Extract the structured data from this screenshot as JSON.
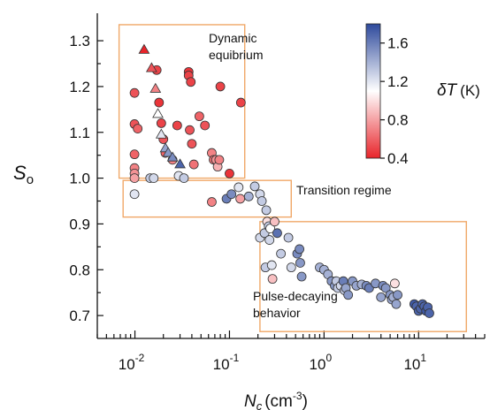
{
  "chart_data": {
    "type": "scatter",
    "title": "",
    "xlabel_main": "N",
    "xlabel_sub": "c",
    "xlabel_unit": "(cm",
    "xlabel_exp": "-3",
    "xlabel_close": ")",
    "ylabel_main": "S",
    "ylabel_sub": "o",
    "xscale": "log",
    "xlim": [
      0.004,
      50
    ],
    "ylim": [
      0.65,
      1.36
    ],
    "x_tick_labels": [
      {
        "value": 0.01,
        "base": "10",
        "exp": "-2"
      },
      {
        "value": 0.1,
        "base": "10",
        "exp": "-1"
      },
      {
        "value": 1,
        "base": "10",
        "exp": "0"
      },
      {
        "value": 10,
        "base": "10",
        "exp": "1"
      }
    ],
    "y_ticks": [
      0.7,
      0.8,
      0.9,
      1.0,
      1.1,
      1.2,
      1.3
    ],
    "y_tick_labels": [
      "0.7",
      "0.8",
      "0.9",
      "1.0",
      "1.1",
      "1.2",
      "1.3"
    ],
    "colorbar": {
      "label_main": "δT",
      "label_unit": "(K)",
      "range": [
        0.4,
        1.8
      ],
      "ticks": [
        0.4,
        0.8,
        1.2,
        1.6
      ],
      "tick_labels": [
        "0.4",
        "0.8",
        "1.2",
        "1.6"
      ],
      "colormap": [
        "#e8242a",
        "#ffffff",
        "#2e4a9c"
      ]
    },
    "regions": [
      {
        "label_lines": [
          "Dynamic",
          "equibrium"
        ],
        "x": [
          0.0068,
          0.145
        ],
        "y": [
          1.0,
          1.335
        ]
      },
      {
        "label_lines": [
          "Transition regime"
        ],
        "x": [
          0.0075,
          0.45
        ],
        "y": [
          0.915,
          0.995
        ]
      },
      {
        "label_lines": [
          "Pulse-decaying",
          "behavior"
        ],
        "x": [
          0.21,
          32
        ],
        "y": [
          0.665,
          0.905
        ]
      }
    ],
    "series": [
      {
        "marker": "circle",
        "points": [
          [
            0.0099,
            1.186,
            0.55
          ],
          [
            0.0099,
            1.118,
            0.55
          ],
          [
            0.0099,
            1.052,
            0.6
          ],
          [
            0.0099,
            1.022,
            0.7
          ],
          [
            0.0099,
            1.01,
            0.75
          ],
          [
            0.0099,
            1.0,
            0.8
          ],
          [
            0.0099,
            0.965,
            1.2
          ],
          [
            0.0107,
            1.108,
            0.6
          ],
          [
            0.0145,
            1.0,
            1.3
          ],
          [
            0.0158,
            1.0,
            1.25
          ],
          [
            0.017,
            1.236,
            0.5
          ],
          [
            0.018,
            1.165,
            0.45
          ],
          [
            0.019,
            1.12,
            0.5
          ],
          [
            0.02,
            1.085,
            0.55
          ],
          [
            0.021,
            1.055,
            0.6
          ],
          [
            0.025,
            1.04,
            0.7
          ],
          [
            0.028,
            1.115,
            0.5
          ],
          [
            0.029,
            1.005,
            1.2
          ],
          [
            0.033,
            1.0,
            1.3
          ],
          [
            0.037,
            1.232,
            0.45
          ],
          [
            0.037,
            1.224,
            0.5
          ],
          [
            0.039,
            1.21,
            0.5
          ],
          [
            0.038,
            1.105,
            0.55
          ],
          [
            0.04,
            1.075,
            0.55
          ],
          [
            0.042,
            1.03,
            0.65
          ],
          [
            0.048,
            1.135,
            0.6
          ],
          [
            0.055,
            1.115,
            0.55
          ],
          [
            0.065,
            1.055,
            0.7
          ],
          [
            0.065,
            0.948,
            0.7
          ],
          [
            0.068,
            1.04,
            0.65
          ],
          [
            0.072,
            1.04,
            0.75
          ],
          [
            0.075,
            1.025,
            0.85
          ],
          [
            0.078,
            1.04,
            0.7
          ],
          [
            0.08,
            1.2,
            0.5
          ],
          [
            0.093,
            0.955,
            1.6
          ],
          [
            0.1,
            1.01,
            0.45
          ],
          [
            0.105,
            0.965,
            1.55
          ],
          [
            0.125,
            0.98,
            1.2
          ],
          [
            0.13,
            0.955,
            0.8
          ],
          [
            0.132,
            1.165,
            0.5
          ],
          [
            0.16,
            0.96,
            1.4
          ],
          [
            0.185,
            0.982,
            1.3
          ],
          [
            0.21,
            0.965,
            1.25
          ],
          [
            0.21,
            0.87,
            1.25
          ],
          [
            0.22,
            0.95,
            1.3
          ],
          [
            0.235,
            0.88,
            1.3
          ],
          [
            0.24,
            0.805,
            1.3
          ],
          [
            0.245,
            0.93,
            1.3
          ],
          [
            0.25,
            0.905,
            1.0
          ],
          [
            0.26,
            0.895,
            1.3
          ],
          [
            0.265,
            0.865,
            1.25
          ],
          [
            0.27,
            0.89,
            1.1
          ],
          [
            0.28,
            0.81,
            1.2
          ],
          [
            0.285,
            0.78,
            0.9
          ],
          [
            0.3,
            0.905,
            0.9
          ],
          [
            0.32,
            0.88,
            1.65
          ],
          [
            0.35,
            0.835,
            1.3
          ],
          [
            0.42,
            0.87,
            1.3
          ],
          [
            0.45,
            0.805,
            1.25
          ],
          [
            0.52,
            0.835,
            1.55
          ],
          [
            0.55,
            0.845,
            1.55
          ],
          [
            0.56,
            0.815,
            1.5
          ],
          [
            0.58,
            0.785,
            1.5
          ],
          [
            0.9,
            0.805,
            1.4
          ],
          [
            1.0,
            0.8,
            1.4
          ],
          [
            1.1,
            0.79,
            1.4
          ],
          [
            1.2,
            0.775,
            1.5
          ],
          [
            1.3,
            0.765,
            1.5
          ],
          [
            1.35,
            0.775,
            1.3
          ],
          [
            1.4,
            0.76,
            1.3
          ],
          [
            1.5,
            0.765,
            1.25
          ],
          [
            1.6,
            0.775,
            1.6
          ],
          [
            1.65,
            0.755,
            1.3
          ],
          [
            1.7,
            0.76,
            1.45
          ],
          [
            1.8,
            0.745,
            1.5
          ],
          [
            2.0,
            0.775,
            1.5
          ],
          [
            2.2,
            0.765,
            1.45
          ],
          [
            2.5,
            0.768,
            1.4
          ],
          [
            2.8,
            0.765,
            1.55
          ],
          [
            3.0,
            0.76,
            1.6
          ],
          [
            3.5,
            0.77,
            1.5
          ],
          [
            4.0,
            0.74,
            1.45
          ],
          [
            4.2,
            0.765,
            1.55
          ],
          [
            4.5,
            0.76,
            1.5
          ],
          [
            5.0,
            0.745,
            1.5
          ],
          [
            5.2,
            0.735,
            1.45
          ],
          [
            5.4,
            0.74,
            1.4
          ],
          [
            5.6,
            0.77,
            1.0
          ],
          [
            5.8,
            0.725,
            1.45
          ],
          [
            6.0,
            0.745,
            1.5
          ],
          [
            9.0,
            0.725,
            1.75
          ],
          [
            9.5,
            0.72,
            1.7
          ],
          [
            10.0,
            0.71,
            1.7
          ],
          [
            10.5,
            0.715,
            1.7
          ],
          [
            11.0,
            0.725,
            1.7
          ],
          [
            11.5,
            0.72,
            1.7
          ],
          [
            12.0,
            0.71,
            1.75
          ],
          [
            12.5,
            0.718,
            1.7
          ],
          [
            13.0,
            0.705,
            1.7
          ]
        ]
      },
      {
        "marker": "triangle",
        "points": [
          [
            0.0125,
            1.28,
            0.4
          ],
          [
            0.015,
            1.24,
            0.55
          ],
          [
            0.0165,
            1.195,
            0.7
          ],
          [
            0.0175,
            1.14,
            1.1
          ],
          [
            0.019,
            1.095,
            1.2
          ],
          [
            0.021,
            1.065,
            1.45
          ],
          [
            0.0225,
            1.055,
            1.5
          ],
          [
            0.025,
            1.045,
            1.55
          ],
          [
            0.03,
            1.03,
            1.7
          ]
        ]
      }
    ]
  }
}
